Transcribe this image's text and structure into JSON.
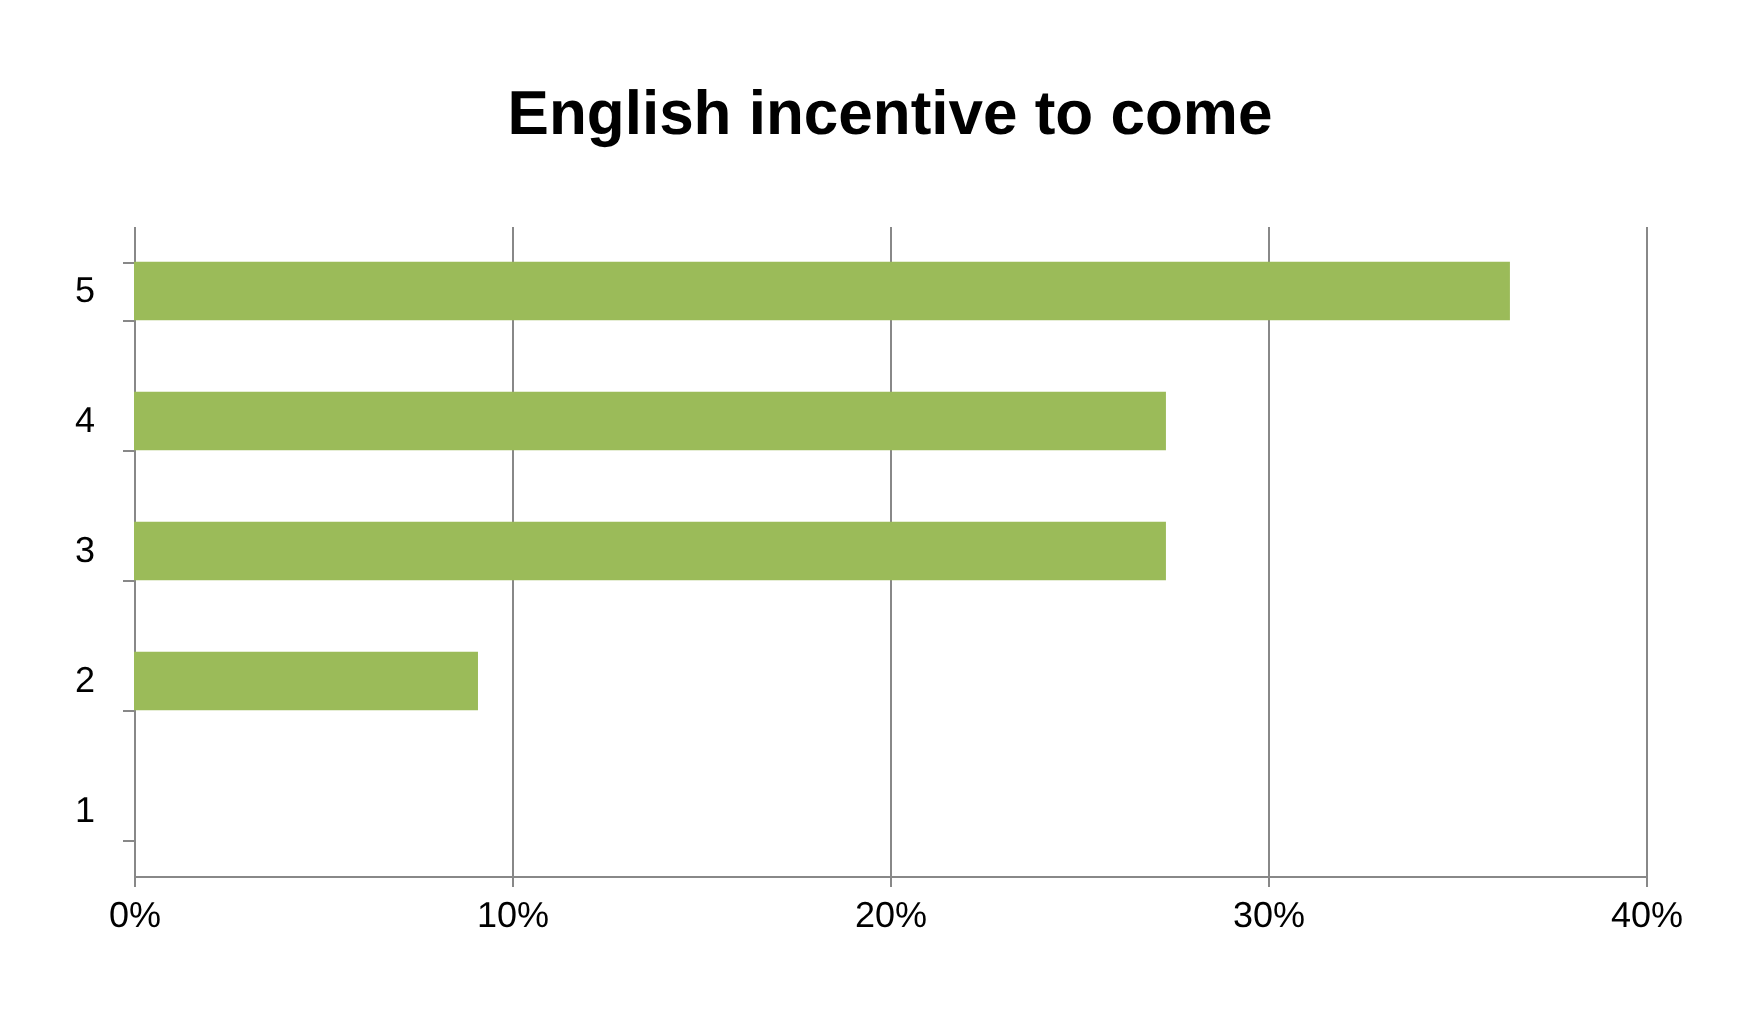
{
  "chart_data": {
    "type": "bar",
    "orientation": "horizontal",
    "title": "English  incentive to come",
    "categories": [
      "5",
      "4",
      "3",
      "2",
      "1"
    ],
    "values": [
      36.4,
      27.3,
      27.3,
      9.1,
      0
    ],
    "color": "#9bbb59",
    "xlim": [
      0,
      40
    ],
    "xticks": [
      {
        "value": 0,
        "label": "0%"
      },
      {
        "value": 10,
        "label": "10%"
      },
      {
        "value": 20,
        "label": "20%"
      },
      {
        "value": 30,
        "label": "30%"
      },
      {
        "value": 40,
        "label": "40%"
      }
    ],
    "grid": "x"
  }
}
